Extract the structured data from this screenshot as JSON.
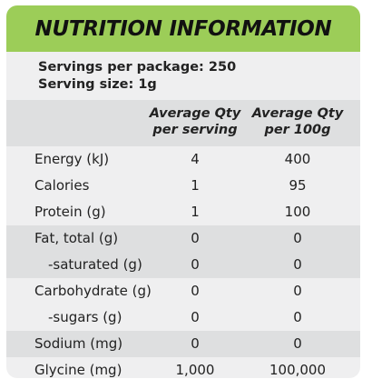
{
  "header": {
    "title": "NUTRITION INFORMATION"
  },
  "servings": {
    "per_package": "Servings per package: 250",
    "serving_size": "Serving size: 1g"
  },
  "table": {
    "columns": [
      {
        "line1": "Average Qty",
        "line2": "per serving"
      },
      {
        "line1": "Average Qty",
        "line2": "per 100g"
      }
    ],
    "rows": [
      {
        "label": "Energy (kJ)",
        "per_serving": "4",
        "per_100g": "400"
      },
      {
        "label": "Calories",
        "per_serving": "1",
        "per_100g": "95"
      },
      {
        "label": "Protein (g)",
        "per_serving": "1",
        "per_100g": "100"
      },
      {
        "label": "Fat, total (g)",
        "per_serving": "0",
        "per_100g": "0"
      },
      {
        "label": "-saturated (g)",
        "per_serving": "0",
        "per_100g": "0"
      },
      {
        "label": "Carbohydrate (g)",
        "per_serving": "0",
        "per_100g": "0"
      },
      {
        "label": "-sugars (g)",
        "per_serving": "0",
        "per_100g": "0"
      },
      {
        "label": "Sodium (mg)",
        "per_serving": "0",
        "per_100g": "0"
      },
      {
        "label": "Glycine (mg)",
        "per_serving": "1,000",
        "per_100g": "100,000"
      }
    ]
  },
  "colors": {
    "header_green": "#9ccd58",
    "panel_bg": "#efeff0",
    "row_shade": "#dedfe0",
    "text": "#1a1a1a"
  }
}
